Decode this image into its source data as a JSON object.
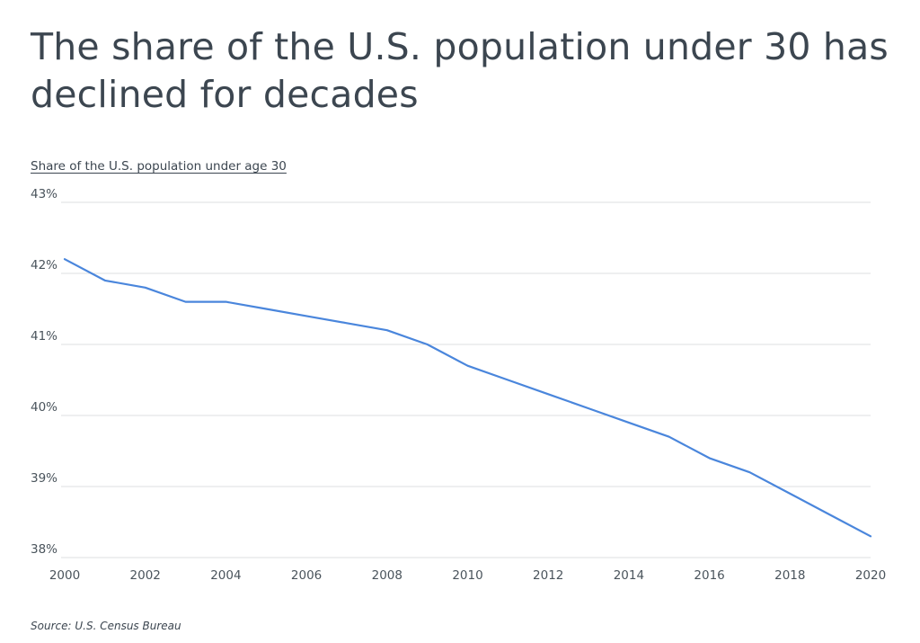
{
  "chart_data": {
    "type": "line",
    "title": "The share of the U.S. population under 30 has declined for decades",
    "ylabel": "Share of the U.S. population under age 30",
    "xlabel": "",
    "source_label": "Source:",
    "source_name": "U.S. Census Bureau",
    "xlim": [
      2000,
      2020
    ],
    "ylim": [
      38,
      43
    ],
    "grid": true,
    "x_ticks": [
      2000,
      2002,
      2004,
      2006,
      2008,
      2010,
      2012,
      2014,
      2016,
      2018,
      2020
    ],
    "x_tick_labels": [
      "2000",
      "2002",
      "2004",
      "2006",
      "2008",
      "2010",
      "2012",
      "2014",
      "2016",
      "2018",
      "2020"
    ],
    "y_ticks": [
      43,
      42,
      41,
      40,
      39,
      38
    ],
    "y_tick_labels": [
      "43%",
      "42%",
      "41%",
      "40%",
      "39%",
      "38%"
    ],
    "series": [
      {
        "name": "Share under 30",
        "color": "#4a86dc",
        "x": [
          2000,
          2001,
          2002,
          2003,
          2004,
          2005,
          2006,
          2007,
          2008,
          2009,
          2010,
          2011,
          2012,
          2013,
          2014,
          2015,
          2016,
          2017,
          2018,
          2019,
          2020
        ],
        "values": [
          42.2,
          41.9,
          41.8,
          41.6,
          41.6,
          41.5,
          41.4,
          41.3,
          41.2,
          41.0,
          40.7,
          40.5,
          40.3,
          40.1,
          39.9,
          39.7,
          39.4,
          39.2,
          38.9,
          38.6,
          38.3
        ]
      }
    ],
    "colors": {
      "grid": "#dcdfe2",
      "text": "#3c4650"
    }
  }
}
